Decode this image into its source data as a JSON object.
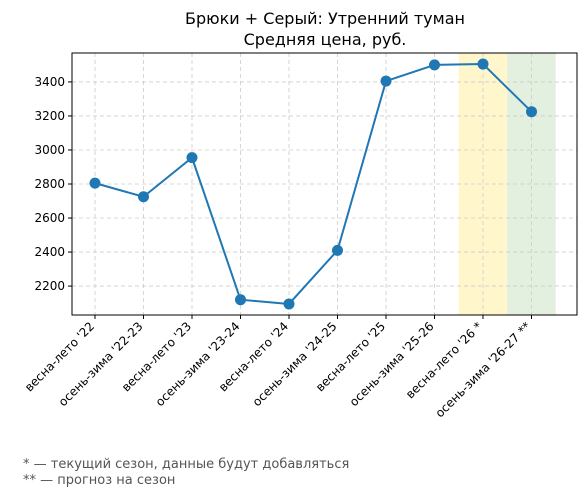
{
  "chart_data": {
    "type": "line",
    "title": "Брюки + Серый: Утренний туман",
    "subtitle": "Средняя цена, руб.",
    "xlabel": "",
    "ylabel": "",
    "categories": [
      "весна-лето '22",
      "осень-зима '22-23",
      "весна-лето '23",
      "осень-зима '23-24",
      "весна-лето '24",
      "осень-зима '24-25",
      "весна-лето '25",
      "осень-зима '25-26",
      "весна-лето '26 *",
      "осень-зима '26-27 **"
    ],
    "series": [
      {
        "values": [
          2805,
          2725,
          2955,
          2120,
          2095,
          2410,
          3405,
          3500,
          3505,
          3225
        ]
      }
    ],
    "ylim": [
      2030,
      3570
    ],
    "yticks": [
      2200,
      2400,
      2600,
      2800,
      3000,
      3200,
      3400
    ],
    "grid": true,
    "highlights": [
      {
        "category": "весна-лето '26 *",
        "color": "#fff6cc"
      },
      {
        "category": "осень-зима '26-27 **",
        "color": "#e3f0df"
      }
    ],
    "line_color": "#1f77b4"
  },
  "footnotes": [
    "* — текущий сезон, данные будут добавляться",
    "** — прогноз на сезон"
  ]
}
